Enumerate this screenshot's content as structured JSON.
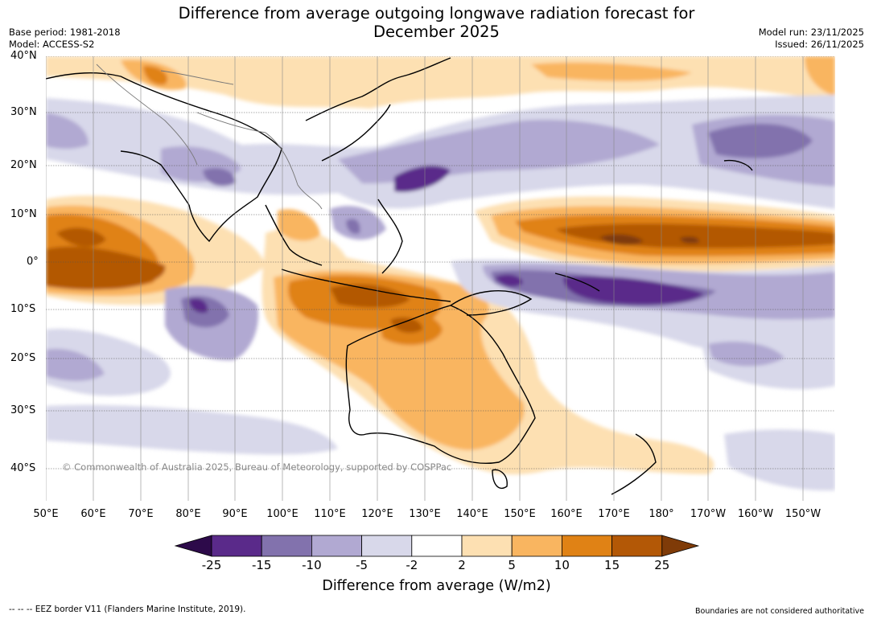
{
  "header": {
    "title_line1": "Difference from average outgoing longwave radiation forecast for",
    "title_line2": "December 2025",
    "base_period": "Base period: 1981-2018",
    "model": "Model: ACCESS-S2",
    "model_run": "Model run: 23/11/2025",
    "issued": "Issued: 26/11/2025"
  },
  "map": {
    "latitude_labels": [
      "40°N",
      "30°N",
      "20°N",
      "10°N",
      "0°",
      "10°S",
      "20°S",
      "30°S",
      "40°S"
    ],
    "longitude_labels": [
      "50°E",
      "60°E",
      "70°E",
      "80°E",
      "90°E",
      "100°E",
      "110°E",
      "120°E",
      "130°E",
      "140°E",
      "150°E",
      "160°E",
      "170°E",
      "180°",
      "170°W",
      "160°W",
      "150°W"
    ],
    "copyright": "© Commonwealth of Australia 2025, Bureau of Meteorology, supported by COSPPac"
  },
  "colorbar": {
    "title": "Difference from average (W/m2)",
    "ticks": [
      "-25",
      "-15",
      "-10",
      "-5",
      "-2",
      "2",
      "5",
      "10",
      "15",
      "25"
    ],
    "colors": [
      "#2d0a4a",
      "#5a2a8a",
      "#8272ad",
      "#b1a9d2",
      "#d8d8ea",
      "#ffffff",
      "#fde0b2",
      "#f9b560",
      "#e08215",
      "#b35806",
      "#7f3b08"
    ]
  },
  "footer": {
    "eez_note": "--  --  -- EEZ border V11 (Flanders Marine Institute, 2019).",
    "boundaries_note": "Boundaries are not considered authoritative"
  }
}
